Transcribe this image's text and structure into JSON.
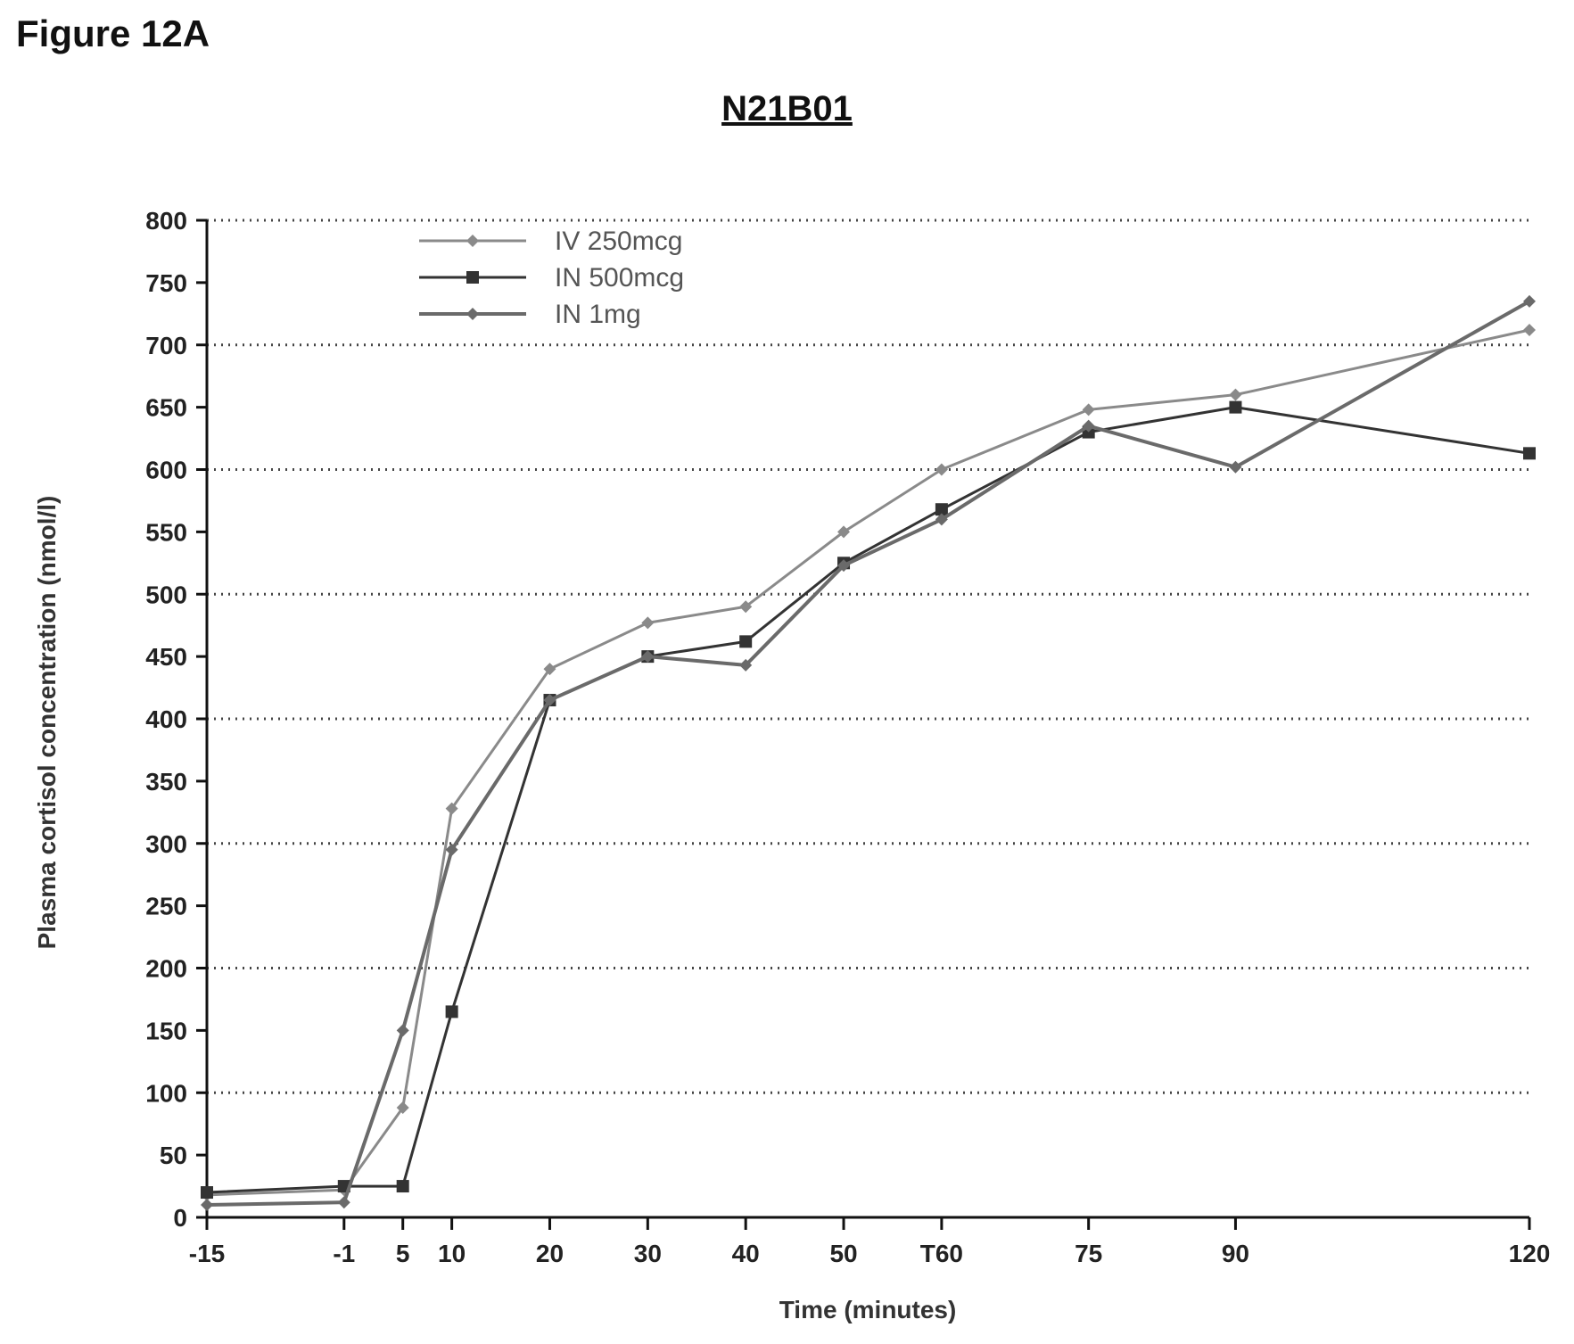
{
  "figure_label": "Figure 12A",
  "chart_data": {
    "type": "line",
    "title": "N21B01",
    "xlabel": "Time (minutes)",
    "ylabel": "Plasma cortisol concentration (nmol/l)",
    "x": [
      -15,
      -1,
      5,
      10,
      20,
      30,
      40,
      50,
      60,
      75,
      90,
      120
    ],
    "x_tick_labels": [
      "-15",
      "-1",
      "5",
      "10",
      "20",
      "30",
      "40",
      "50",
      "T60",
      "75",
      "90",
      "120"
    ],
    "ylim": [
      0,
      800
    ],
    "yticks": [
      0,
      50,
      100,
      150,
      200,
      250,
      300,
      350,
      400,
      450,
      500,
      550,
      600,
      650,
      700,
      750,
      800
    ],
    "grid": "horizontal-dotted",
    "legend_position": "top-left",
    "series": [
      {
        "name": "IV 250mcg",
        "color": "#8a8a8a",
        "marker": "diamond",
        "values": [
          18,
          22,
          88,
          328,
          440,
          477,
          490,
          550,
          600,
          648,
          660,
          712
        ]
      },
      {
        "name": "IN 500mcg",
        "color": "#333333",
        "marker": "square",
        "values": [
          20,
          25,
          25,
          165,
          415,
          450,
          462,
          525,
          568,
          630,
          650,
          613
        ]
      },
      {
        "name": "IN 1mg",
        "color": "#6a6a6a",
        "marker": "diamond",
        "values": [
          10,
          12,
          150,
          295,
          415,
          450,
          443,
          523,
          560,
          635,
          602,
          735
        ]
      }
    ]
  }
}
